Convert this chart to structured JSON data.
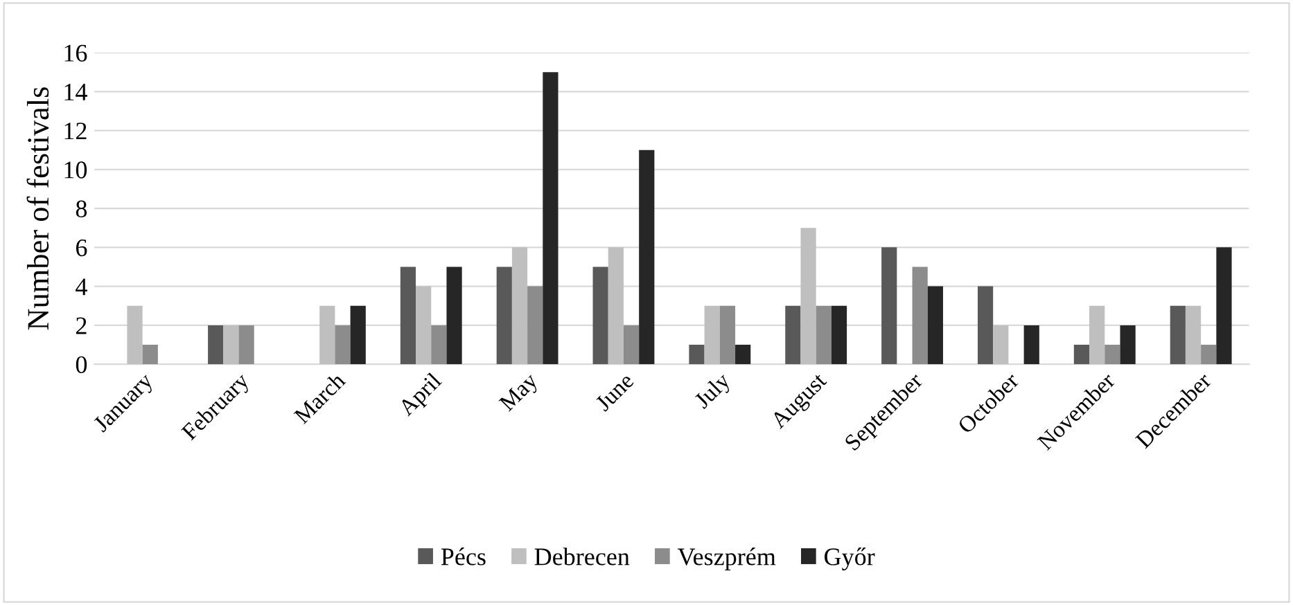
{
  "chart_data": {
    "type": "bar",
    "ylabel": "Number of festivals",
    "categories": [
      "January",
      "February",
      "March",
      "April",
      "May",
      "June",
      "July",
      "August",
      "September",
      "October",
      "November",
      "December"
    ],
    "series": [
      {
        "name": "Pécs",
        "color": "#595959",
        "values": [
          0,
          2,
          0,
          5,
          5,
          5,
          1,
          3,
          6,
          4,
          1,
          3
        ]
      },
      {
        "name": "Debrecen",
        "color": "#bfbfbf",
        "values": [
          3,
          2,
          3,
          4,
          6,
          6,
          3,
          7,
          0,
          2,
          3,
          3
        ]
      },
      {
        "name": "Veszprém",
        "color": "#8c8c8c",
        "values": [
          1,
          2,
          2,
          2,
          4,
          2,
          3,
          3,
          5,
          0,
          1,
          1
        ]
      },
      {
        "name": "Győr",
        "color": "#262626",
        "values": [
          0,
          0,
          3,
          5,
          15,
          11,
          1,
          3,
          4,
          2,
          2,
          6
        ]
      }
    ],
    "ylim": [
      0,
      16
    ],
    "yticks": [
      0,
      2,
      4,
      6,
      8,
      10,
      12,
      14,
      16
    ],
    "grid": "y",
    "legend": "bottom"
  }
}
